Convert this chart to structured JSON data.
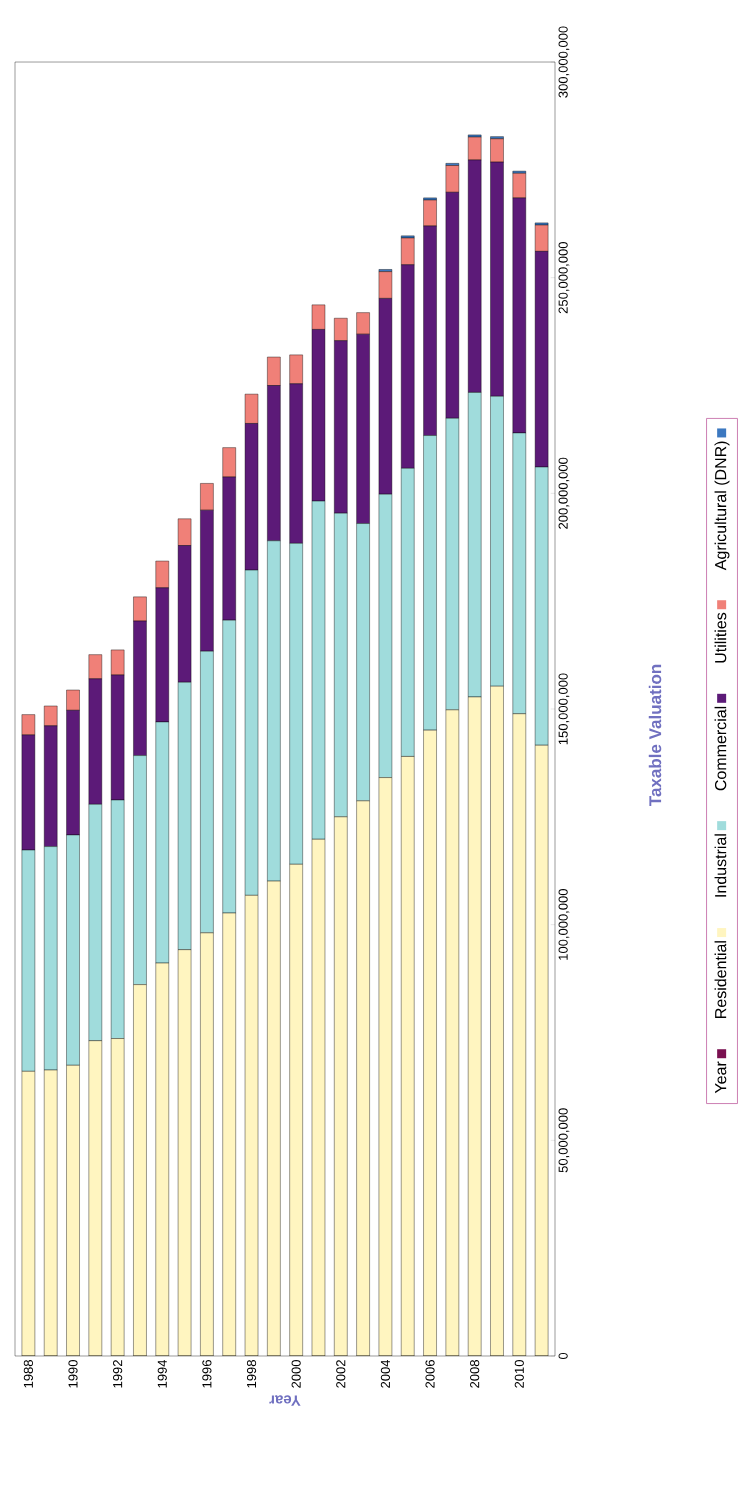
{
  "chart_data": {
    "type": "bar",
    "stacked": true,
    "xlabel": "Year",
    "ylabel": "Taxable Valuation",
    "categories": [
      "1988",
      null,
      "1990",
      null,
      "1992",
      null,
      "1994",
      null,
      "1996",
      null,
      "1998",
      null,
      "2000",
      null,
      "2002",
      null,
      "2004",
      null,
      "2006",
      null,
      "2008",
      null,
      "2010",
      null
    ],
    "series": [
      {
        "name": "Year",
        "color": "#7a1050",
        "values": [
          1988,
          1989,
          1990,
          1991,
          1992,
          1993,
          1994,
          1995,
          1996,
          1997,
          1998,
          1999,
          2000,
          2001,
          2002,
          2003,
          2004,
          2005,
          2006,
          2007,
          2008,
          2009,
          2010,
          2011
        ]
      },
      {
        "name": "Residential",
        "color": "#fff5c0",
        "values": [
          66000000,
          66300000,
          67400000,
          73100000,
          73600000,
          86100000,
          91100000,
          94200000,
          98100000,
          102700000,
          106800000,
          110100000,
          114000000,
          119800000,
          125000000,
          128700000,
          134100000,
          139000000,
          145100000,
          149800000,
          152800000,
          155300000,
          148900000,
          141600000
        ]
      },
      {
        "name": "Industrial",
        "color": "#a0dcdc",
        "values": [
          51300000,
          51800000,
          53400000,
          54800000,
          55300000,
          53100000,
          55900000,
          62000000,
          65300000,
          67900000,
          75400000,
          78900000,
          74400000,
          78400000,
          70400000,
          64300000,
          65700000,
          66800000,
          68300000,
          67600000,
          70600000,
          67200000,
          65100000,
          64500000
        ]
      },
      {
        "name": "Commercial",
        "color": "#5c1a78",
        "values": [
          26700000,
          28000000,
          28900000,
          29100000,
          29000000,
          31200000,
          31100000,
          31700000,
          32700000,
          33200000,
          34000000,
          36000000,
          37000000,
          39800000,
          40000000,
          43900000,
          45400000,
          47200000,
          48600000,
          52400000,
          53900000,
          54300000,
          54500000,
          50000000
        ]
      },
      {
        "name": "Utilities",
        "color": "#f08078",
        "values": [
          4700000,
          4600000,
          4700000,
          5600000,
          5800000,
          5600000,
          6200000,
          6200000,
          6200000,
          6800000,
          6800000,
          6600000,
          6700000,
          5700000,
          5200000,
          5000000,
          6200000,
          6200000,
          6000000,
          6200000,
          5300000,
          5400000,
          5700000,
          6100000
        ]
      },
      {
        "name": "Agricultural (DNR)",
        "color": "#3c78c0",
        "values": [
          0,
          0,
          0,
          0,
          0,
          0,
          0,
          0,
          0,
          0,
          0,
          0,
          0,
          0,
          0,
          0,
          500000,
          500000,
          500000,
          500000,
          500000,
          500000,
          500000,
          500000
        ]
      }
    ],
    "ylim": [
      0,
      300000000
    ],
    "yticks": [
      0,
      {
        "value": 50000000,
        "label": "50,000,000"
      },
      {
        "value": 100000000,
        "label": "100,000,000"
      },
      {
        "value": 150000000,
        "label": "150,000,000"
      },
      {
        "value": 200000000,
        "label": "200,000,000"
      },
      {
        "value": 250000000,
        "label": "250,000,000"
      },
      {
        "value": 300000000,
        "label": "300,000,000"
      }
    ],
    "legend": "right",
    "grid": false
  }
}
